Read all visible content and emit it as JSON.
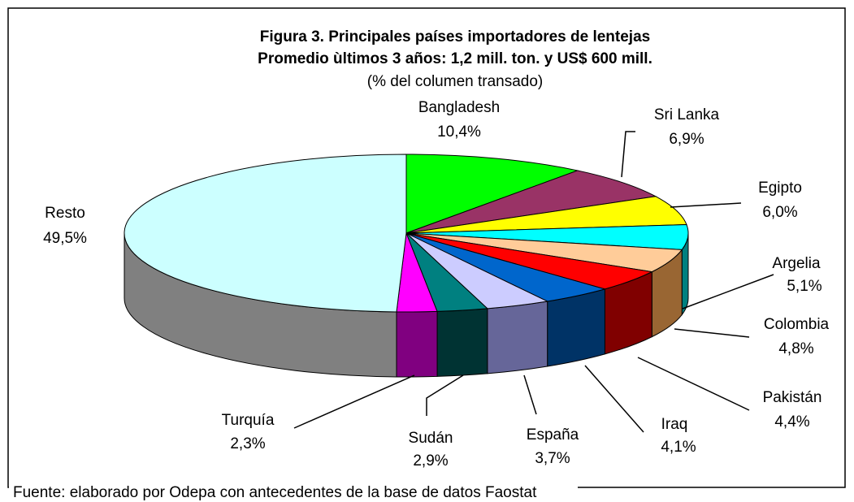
{
  "chart_data": {
    "type": "pie3d",
    "title": "Figura 3. Principales países importadores de lentejas",
    "subtitle": "Promedio ùltimos 3 años: 1,2 mill. ton. y US$ 600 mill.",
    "note": "(% del columen transado)",
    "source": "Fuente: elaborado por Odepa con antecedentes de la base de datos Faostat",
    "categories": [
      "Bangladesh",
      "Sri Lanka",
      "Egipto",
      "Argelia",
      "Colombia",
      "Pakistán",
      "Iraq",
      "España",
      "Sudán",
      "Turquía",
      "Resto"
    ],
    "values": [
      10.4,
      6.9,
      6.0,
      5.1,
      4.8,
      4.4,
      4.1,
      3.7,
      2.9,
      2.3,
      49.5
    ],
    "value_labels": [
      "10,4%",
      "6,9%",
      "6,0%",
      "5,1%",
      "4,8%",
      "4,4%",
      "4,1%",
      "3,7%",
      "2,9%",
      "2,3%",
      "49,5%"
    ],
    "colors": [
      "#00ff00",
      "#993366",
      "#ffff00",
      "#00ffff",
      "#ffcc99",
      "#ff0000",
      "#0066cc",
      "#ccccff",
      "#008080",
      "#ff00ff",
      "#ccffff"
    ],
    "side_colors": [
      "#008000",
      "#4d1a33",
      "#808000",
      "#008080",
      "#996633",
      "#800000",
      "#003366",
      "#666699",
      "#003333",
      "#800080",
      "#808080"
    ]
  }
}
